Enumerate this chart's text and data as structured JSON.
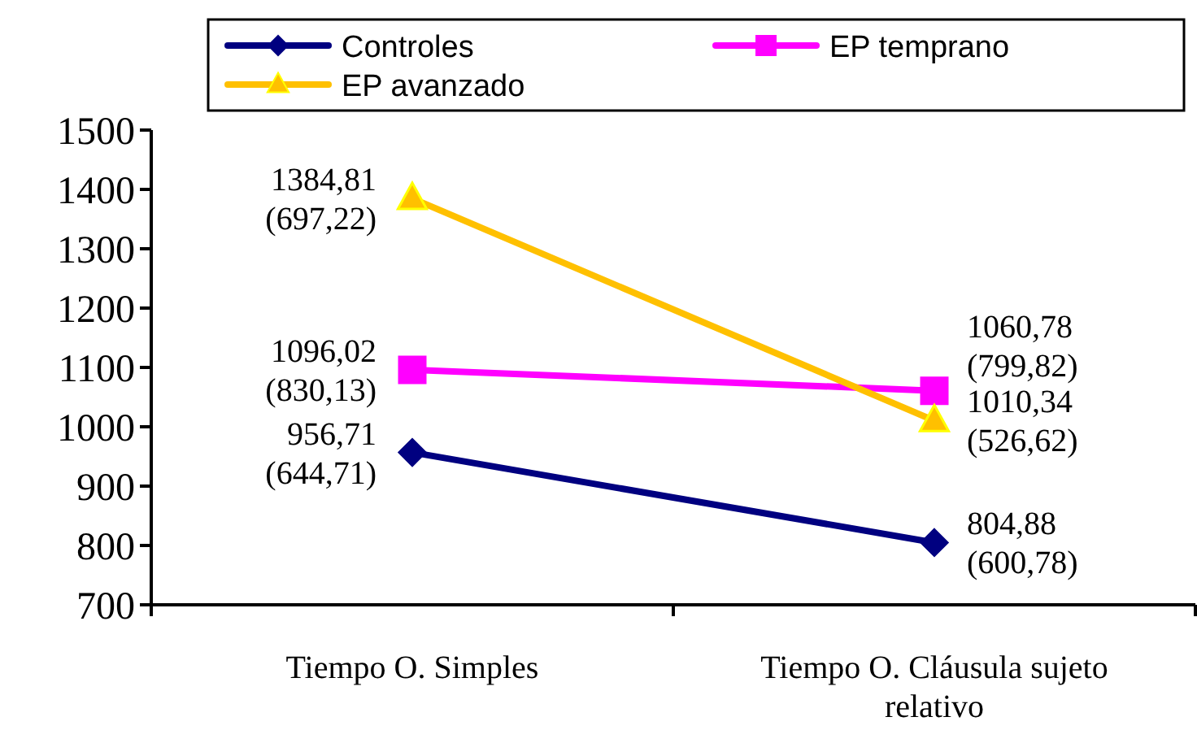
{
  "chart_data": {
    "type": "line",
    "categories": [
      "Tiempo O. Simples",
      "Tiempo O. Cláusula sujeto relativo"
    ],
    "series": [
      {
        "name": "Controles",
        "color": "#000080",
        "marker": "diamond",
        "values": [
          956.71,
          804.88
        ],
        "value_labels": [
          "956,71\n(644,71)",
          "804,88\n(600,78)"
        ]
      },
      {
        "name": "EP temprano",
        "color": "#ff00ff",
        "marker": "square",
        "values": [
          1096.02,
          1060.78
        ],
        "value_labels": [
          "1096,02\n(830,13)",
          "1060,78\n(799,82)"
        ]
      },
      {
        "name": "EP avanzado",
        "color": "#ffc000",
        "marker": "triangle",
        "values": [
          1384.81,
          1010.34
        ],
        "value_labels": [
          "1384,81\n(697,22)",
          "1010,34\n(526,62)"
        ]
      }
    ],
    "ylim": [
      700,
      1500
    ],
    "yticks": [
      700,
      800,
      900,
      1000,
      1100,
      1200,
      1300,
      1400,
      1500
    ],
    "grid": false,
    "legend": "top",
    "line_style": "solid"
  }
}
